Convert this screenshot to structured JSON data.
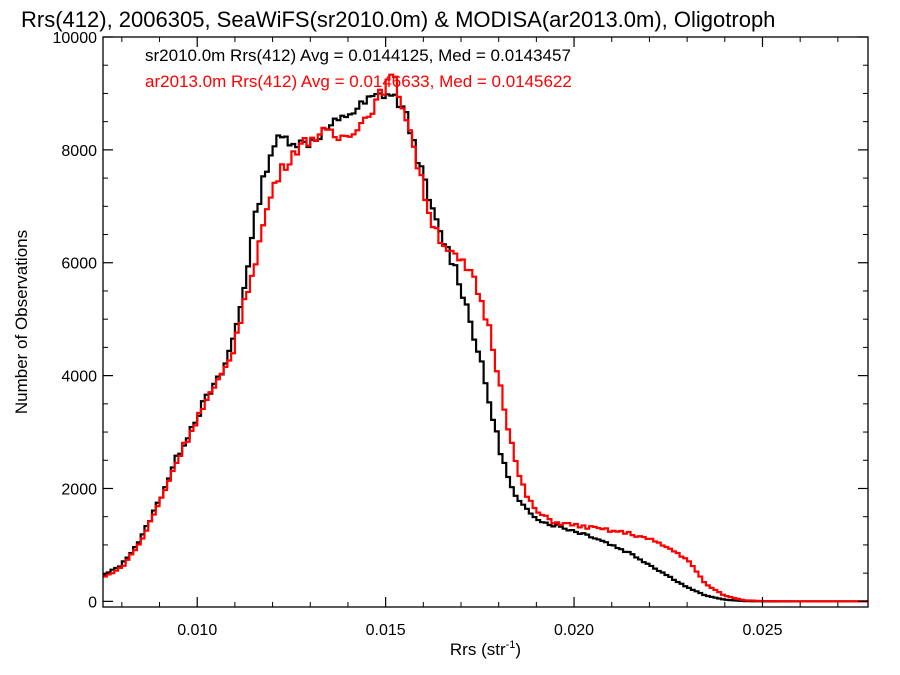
{
  "chart_data": {
    "type": "line",
    "title": "Rrs(412), 2006305, SeaWiFS(sr2010.0m) & MODISA(ar2013.0m), Oligotroph",
    "xlabel": "Rrs (str",
    "xlabel_sup": "-1",
    "xlabel_end": ")",
    "ylabel": "Number of Observations",
    "xlim": [
      0.0075,
      0.0278
    ],
    "ylim": [
      -100,
      10000
    ],
    "x_ticks": [
      0.01,
      0.015,
      0.02,
      0.025
    ],
    "x_tick_labels": [
      "0.010",
      "0.015",
      "0.020",
      "0.025"
    ],
    "y_ticks": [
      0,
      2000,
      4000,
      6000,
      8000,
      10000
    ],
    "y_tick_labels": [
      "0",
      "2000",
      "4000",
      "6000",
      "8000",
      "10000"
    ],
    "step_style": "histogram",
    "bin_width": 0.0001,
    "series": [
      {
        "name": "sr2010.0m Rrs(412) Avg = 0.0144125, Med = 0.0143457",
        "color": "#000000",
        "x": [
          0.0075,
          0.008,
          0.0085,
          0.009,
          0.0095,
          0.01,
          0.0103,
          0.0106,
          0.0108,
          0.011,
          0.0112,
          0.0114,
          0.0116,
          0.0118,
          0.012,
          0.0122,
          0.0124,
          0.0126,
          0.0128,
          0.013,
          0.0132,
          0.0134,
          0.0136,
          0.0138,
          0.014,
          0.0142,
          0.0144,
          0.0146,
          0.0148,
          0.015,
          0.0152,
          0.0154,
          0.0156,
          0.0158,
          0.016,
          0.0162,
          0.0164,
          0.0166,
          0.0168,
          0.017,
          0.0172,
          0.0174,
          0.0176,
          0.0178,
          0.018,
          0.0182,
          0.0184,
          0.0186,
          0.0188,
          0.019,
          0.0192,
          0.0195,
          0.02,
          0.0205,
          0.021,
          0.0215,
          0.022,
          0.0225,
          0.023,
          0.0235,
          0.024,
          0.0245,
          0.025,
          0.026,
          0.027,
          0.0278
        ],
        "y": [
          450,
          650,
          1100,
          1800,
          2600,
          3300,
          3650,
          3950,
          4300,
          4750,
          5400,
          6200,
          7000,
          7600,
          8050,
          8200,
          8200,
          8150,
          8100,
          8150,
          8250,
          8350,
          8450,
          8500,
          8650,
          8700,
          8800,
          8900,
          8950,
          9000,
          8950,
          8800,
          8500,
          8000,
          7500,
          7000,
          6600,
          6300,
          6000,
          5600,
          5100,
          4600,
          4000,
          3400,
          2800,
          2300,
          1900,
          1700,
          1600,
          1500,
          1400,
          1350,
          1250,
          1150,
          1000,
          850,
          650,
          450,
          250,
          100,
          30,
          5,
          0,
          0,
          0,
          0
        ]
      },
      {
        "name": "ar2013.0m Rrs(412) Avg = 0.0146633, Med = 0.0145622",
        "color": "#ff0000",
        "x": [
          0.0075,
          0.008,
          0.0085,
          0.009,
          0.0095,
          0.01,
          0.0103,
          0.0106,
          0.0108,
          0.011,
          0.0112,
          0.0114,
          0.0116,
          0.0118,
          0.012,
          0.0122,
          0.0124,
          0.0126,
          0.0128,
          0.013,
          0.0132,
          0.0134,
          0.0136,
          0.0138,
          0.014,
          0.0142,
          0.0144,
          0.0146,
          0.0148,
          0.015,
          0.0152,
          0.0154,
          0.0156,
          0.0158,
          0.016,
          0.0162,
          0.0164,
          0.0166,
          0.0168,
          0.017,
          0.0172,
          0.0174,
          0.0176,
          0.0178,
          0.018,
          0.0182,
          0.0184,
          0.0186,
          0.0188,
          0.019,
          0.0192,
          0.0195,
          0.02,
          0.0205,
          0.021,
          0.0215,
          0.022,
          0.0225,
          0.023,
          0.0235,
          0.024,
          0.0245,
          0.025,
          0.026,
          0.027,
          0.0278
        ],
        "y": [
          420,
          600,
          1050,
          1750,
          2550,
          3250,
          3600,
          3900,
          4200,
          4600,
          5100,
          5700,
          6200,
          6800,
          7300,
          7600,
          7800,
          8000,
          8100,
          8200,
          8250,
          8300,
          8250,
          8200,
          8300,
          8400,
          8500,
          8700,
          8900,
          9150,
          9300,
          8900,
          8500,
          7900,
          7300,
          6800,
          6500,
          6300,
          6100,
          6000,
          5850,
          5600,
          5200,
          4700,
          4000,
          3300,
          2600,
          2100,
          1800,
          1600,
          1500,
          1400,
          1350,
          1300,
          1250,
          1200,
          1100,
          950,
          750,
          300,
          100,
          20,
          5,
          0,
          0,
          0
        ]
      }
    ]
  }
}
